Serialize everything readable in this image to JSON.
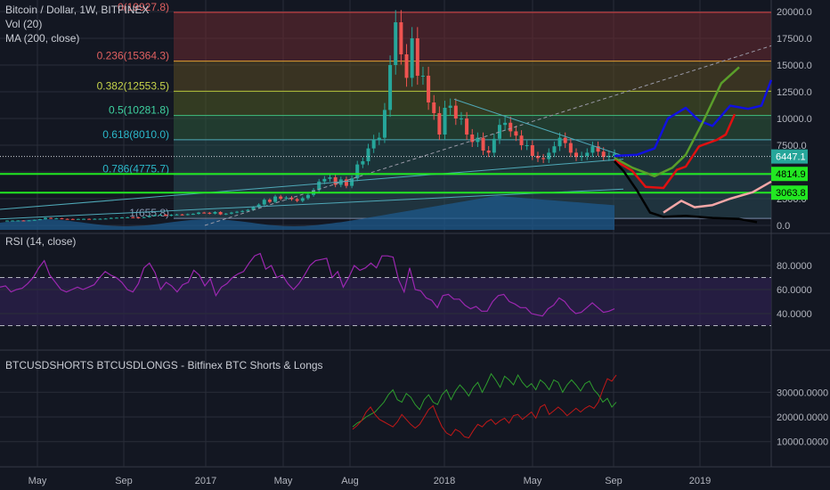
{
  "header": {
    "title": "Bitcoin / Dollar, 1W, BITFINEX",
    "vol_label": "Vol (20)",
    "ma_label": "MA (200, close)"
  },
  "colors": {
    "background": "#131722",
    "grid": "#2a2e39",
    "up": "#26a69a",
    "down": "#ef5350",
    "green_level": "#22e822",
    "price_badge": "#26a69a",
    "rsi_line": "#9c27b0",
    "longs_line": "#2e9e2e",
    "shorts_line": "#c01818",
    "proj_blue": "#1010e0",
    "proj_green": "#5a9e2a",
    "proj_red": "#e01010",
    "proj_pink": "#f4a7a7",
    "proj_black": "#000000"
  },
  "chart_data": [
    {
      "type": "candlestick",
      "title": "Bitcoin / Dollar, 1W, BITFINEX",
      "x_ticks": [
        "May",
        "Sep",
        "2017",
        "May",
        "Aug",
        "2018",
        "May",
        "Sep",
        "2019"
      ],
      "y_ticks": [
        "20000.0",
        "17500.0",
        "15000.0",
        "12500.0",
        "10000.0",
        "7500.0",
        "5000.0",
        "2500.0",
        "0.0"
      ],
      "ylim": [
        -200,
        21400
      ],
      "fib_levels": [
        {
          "ratio": "1",
          "value": 655.8,
          "label": "1(655.8)"
        },
        {
          "ratio": "0.786",
          "value": 4775.7,
          "label": "0.786(4775.7)"
        },
        {
          "ratio": "0.618",
          "value": 8010.0,
          "label": "0.618(8010.0)"
        },
        {
          "ratio": "0.5",
          "value": 10281.8,
          "label": "0.5(10281.8)"
        },
        {
          "ratio": "0.382",
          "value": 12553.5,
          "label": "0.382(12553.5)"
        },
        {
          "ratio": "0.236",
          "value": 15364.3,
          "label": "0.236(15364.3)"
        },
        {
          "ratio": "0",
          "value": 19927.8,
          "label": "0(19927.8)"
        }
      ],
      "horizontal_levels": [
        4814.9,
        3063.8
      ],
      "price_labels": [
        {
          "value": 6447.1,
          "text": "6447.1",
          "kind": "last"
        },
        {
          "value": 4814.9,
          "text": "4814.9",
          "kind": "level"
        },
        {
          "value": 3063.8,
          "text": "3063.8",
          "kind": "level"
        }
      ],
      "price_series_weekly_close": [
        450,
        455,
        460,
        448,
        470,
        520,
        580,
        700,
        650,
        660,
        610,
        600,
        590,
        600,
        610,
        605,
        615,
        620,
        640,
        700,
        720,
        740,
        760,
        750,
        720,
        770,
        890,
        960,
        1000,
        900,
        1000,
        1020,
        990,
        1050,
        1080,
        1200,
        1180,
        1100,
        1250,
        1030,
        1100,
        1200,
        1280,
        1350,
        1450,
        1700,
        1950,
        2400,
        2200,
        2700,
        2500,
        2600,
        2450,
        2300,
        2550,
        2850,
        3300,
        4100,
        4350,
        4500,
        3800,
        4300,
        3700,
        4400,
        5700,
        6000,
        7200,
        8000,
        8200,
        10800,
        15000,
        19000,
        16000,
        13800,
        17500,
        14000,
        14000,
        11500,
        10500,
        8500,
        11000,
        11200,
        10000,
        10000,
        8500,
        7800,
        8200,
        7000,
        6800,
        8100,
        9400,
        9600,
        8800,
        8400,
        7500,
        7500,
        6500,
        6300,
        6200,
        6800,
        7400,
        8200,
        7700,
        6800,
        6400,
        6500,
        6800,
        7400,
        6900,
        6400,
        6500,
        6700
      ],
      "volume_note": "Vol (20)",
      "ma_note": "MA (200, close)"
    },
    {
      "type": "line",
      "title": "RSI (14, close)",
      "y_ticks": [
        "80.0000",
        "60.0000",
        "40.0000"
      ],
      "ylim": [
        25,
        93
      ],
      "bands": [
        70,
        30
      ],
      "series": [
        {
          "values": [
            62,
            63,
            58,
            60,
            61,
            65,
            70,
            78,
            84,
            72,
            66,
            60,
            58,
            60,
            62,
            60,
            62,
            64,
            70,
            75,
            72,
            70,
            66,
            60,
            58,
            65,
            78,
            82,
            74,
            60,
            66,
            63,
            58,
            64,
            66,
            76,
            72,
            63,
            69,
            55,
            62,
            65,
            70,
            73,
            75,
            82,
            88,
            90,
            77,
            80,
            70,
            72,
            65,
            60,
            65,
            72,
            80,
            84,
            85,
            86,
            70,
            75,
            62,
            70,
            80,
            76,
            78,
            82,
            78,
            88,
            88,
            87,
            68,
            58,
            78,
            60,
            59,
            53,
            51,
            45,
            55,
            56,
            52,
            52,
            47,
            44,
            46,
            42,
            42,
            50,
            55,
            56,
            50,
            48,
            45,
            45,
            40,
            39,
            38,
            44,
            47,
            53,
            50,
            44,
            40,
            41,
            45,
            49,
            45,
            41,
            42,
            44
          ]
        }
      ]
    },
    {
      "type": "line",
      "title": "BTCUSDSHORTS BTCUSDLONGS - Bitfinex BTC Shorts & Longs",
      "y_ticks": [
        "30000.0000",
        "20000.0000",
        "10000.0000"
      ],
      "ylim": [
        9000,
        38000
      ],
      "series": [
        {
          "values": [
            16000,
            17500,
            18500,
            20000,
            21000,
            22000,
            24000,
            26000,
            29000,
            31000,
            27000,
            26000,
            29500,
            28000,
            25000,
            23000,
            27000,
            29000,
            26000,
            25000,
            29000,
            31000,
            27000,
            30500,
            33000,
            31000,
            28500,
            32000,
            34000,
            30000,
            33500,
            37500,
            35000,
            32000,
            36500,
            35000,
            33000,
            37000,
            34000,
            32000,
            33500,
            31000,
            35000,
            33500,
            31000,
            35000,
            34000,
            30000,
            33000,
            35000,
            33000,
            30500,
            33500,
            34500,
            31000,
            29000,
            26000,
            27500,
            24000,
            26000
          ]
        },
        {
          "values": [
            15000,
            16500,
            18500,
            22000,
            24000,
            21000,
            19000,
            18000,
            17000,
            16000,
            18000,
            21000,
            19000,
            17000,
            15500,
            17000,
            20000,
            23000,
            24500,
            20000,
            16000,
            13500,
            12500,
            15000,
            14000,
            12000,
            11500,
            14500,
            17000,
            16000,
            18000,
            19000,
            17000,
            18500,
            19500,
            17500,
            20500,
            21000,
            19000,
            20500,
            22000,
            19500,
            24000,
            25000,
            21000,
            22500,
            24000,
            22500,
            20500,
            22000,
            23500,
            22000,
            23500,
            24500,
            23500,
            26000,
            31000,
            35500,
            34500,
            37000
          ]
        }
      ]
    }
  ]
}
